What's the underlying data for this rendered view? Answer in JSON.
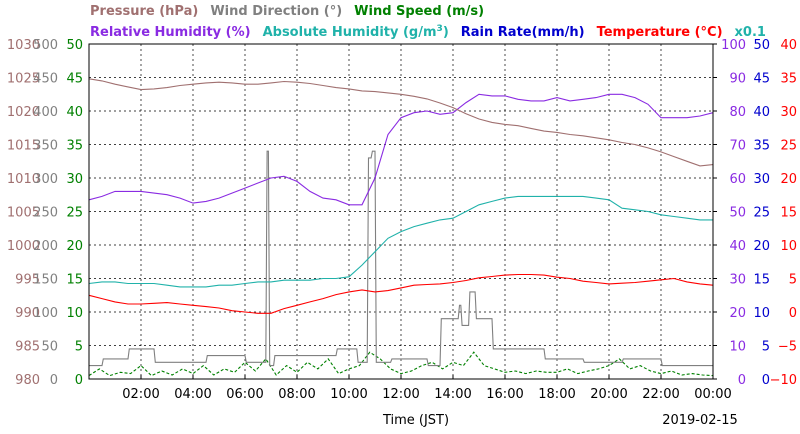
{
  "chart_data": {
    "type": "line",
    "date": "2019-02-15",
    "xlabel": "Time (JST)",
    "x_ticks": [
      "02:00",
      "04:00",
      "06:00",
      "08:00",
      "10:00",
      "12:00",
      "14:00",
      "16:00",
      "18:00",
      "20:00",
      "22:00",
      "00:00"
    ],
    "x_range_hours": [
      0,
      24
    ],
    "grid": true,
    "headers": {
      "line1": [
        {
          "text": "Pressure (hPa)",
          "color": "#a07070"
        },
        {
          "text": "Wind Direction (°)",
          "color": "#808080"
        },
        {
          "text": "Wind Speed (m/s)",
          "color": "#008000"
        }
      ],
      "line2": [
        {
          "text": "Relative Humidity (%)",
          "color": "#8a2be2"
        },
        {
          "text": "Absolute Humidity (g/m",
          "sup": "3",
          "close": ")",
          "color": "#20b2aa"
        },
        {
          "text": "Rain Rate(mm/h)",
          "color": "#0000cd"
        },
        {
          "text": "Temperature (°C)",
          "color": "#ff0000"
        },
        {
          "text": "x0.1",
          "color": "#20b2aa"
        }
      ]
    },
    "axes": {
      "pressure": {
        "color": "#a07070",
        "ticks": [
          "1030",
          "1025",
          "1020",
          "1015",
          "1010",
          "1005",
          "1000",
          "995",
          "990",
          "985",
          "980"
        ],
        "range": [
          980,
          1030
        ]
      },
      "wind_direction": {
        "color": "#808080",
        "ticks": [
          "500",
          "450",
          "400",
          "350",
          "300",
          "250",
          "200",
          "150",
          "100",
          "50",
          "0"
        ],
        "range": [
          0,
          500
        ]
      },
      "wind_speed": {
        "color": "#008000",
        "ticks": [
          "50",
          "45",
          "40",
          "35",
          "30",
          "25",
          "20",
          "15",
          "10",
          "5",
          "0"
        ],
        "range": [
          0,
          50
        ]
      },
      "relative_humidity": {
        "color": "#8a2be2",
        "ticks": [
          "100",
          "90",
          "80",
          "70",
          "60",
          "50",
          "40",
          "30",
          "20",
          "10",
          "0"
        ],
        "range": [
          0,
          100
        ]
      },
      "rain_rate": {
        "color": "#0000cd",
        "ticks": [
          "50",
          "45",
          "40",
          "35",
          "30",
          "25",
          "20",
          "15",
          "10",
          "5",
          "0"
        ],
        "range": [
          0,
          50
        ]
      },
      "temperature": {
        "color": "#ff0000",
        "ticks": [
          "40",
          "35",
          "30",
          "25",
          "20",
          "15",
          "10",
          "5",
          "0",
          "−5",
          "−10"
        ],
        "range": [
          -10,
          40
        ]
      }
    },
    "series": [
      {
        "name": "Pressure",
        "color": "#a07070",
        "axis": "pressure",
        "x": [
          0,
          0.5,
          1,
          1.5,
          2,
          2.5,
          3,
          3.5,
          4,
          4.5,
          5,
          5.5,
          6,
          6.5,
          7,
          7.5,
          8,
          8.5,
          9,
          9.5,
          10,
          10.5,
          11,
          11.5,
          12,
          12.5,
          13,
          13.5,
          14,
          14.5,
          15,
          15.5,
          16,
          16.5,
          17,
          17.5,
          18,
          18.5,
          19,
          19.5,
          20,
          20.5,
          21,
          21.5,
          22,
          22.5,
          23,
          23.5,
          24
        ],
        "y": [
          1024.8,
          1024.5,
          1024.0,
          1023.6,
          1023.2,
          1023.3,
          1023.5,
          1023.8,
          1024.0,
          1024.2,
          1024.3,
          1024.2,
          1024.0,
          1024.0,
          1024.2,
          1024.4,
          1024.3,
          1024.1,
          1023.8,
          1023.5,
          1023.3,
          1023.0,
          1022.9,
          1022.7,
          1022.5,
          1022.2,
          1021.8,
          1021.2,
          1020.5,
          1019.6,
          1018.8,
          1018.3,
          1018.0,
          1017.8,
          1017.4,
          1017.0,
          1016.8,
          1016.5,
          1016.3,
          1016.0,
          1015.7,
          1015.3,
          1015.0,
          1014.5,
          1013.9,
          1013.2,
          1012.5,
          1011.8,
          1012.0
        ]
      },
      {
        "name": "Relative Humidity",
        "color": "#8a2be2",
        "axis": "relative_humidity",
        "x": [
          0,
          0.5,
          1,
          1.5,
          2,
          2.5,
          3,
          3.5,
          4,
          4.5,
          5,
          5.5,
          6,
          6.5,
          7,
          7.5,
          8,
          8.5,
          9,
          9.5,
          10,
          10.5,
          11,
          11.5,
          12,
          12.5,
          13,
          13.5,
          14,
          14.5,
          15,
          15.5,
          16,
          16.5,
          17,
          17.5,
          18,
          18.5,
          19,
          19.5,
          20,
          20.5,
          21,
          21.5,
          22,
          22.5,
          23,
          23.5,
          24
        ],
        "y": [
          53.5,
          54.5,
          56,
          56,
          56,
          55.5,
          55,
          54,
          52.5,
          53,
          54,
          55.5,
          57,
          58.5,
          60,
          60.5,
          59,
          56,
          54,
          53.5,
          52,
          52,
          60,
          73,
          78,
          79.5,
          80,
          79,
          79.5,
          82.5,
          85,
          84.5,
          84.5,
          83.5,
          83,
          83,
          84,
          83,
          83.5,
          84,
          85,
          85,
          84,
          82,
          78,
          78,
          78,
          78.5,
          79.5
        ]
      },
      {
        "name": "Absolute Humidity (x0.1)",
        "color": "#20b2aa",
        "axis": "relative_humidity",
        "x": [
          0,
          0.5,
          1,
          1.5,
          2,
          2.5,
          3,
          3.5,
          4,
          4.5,
          5,
          5.5,
          6,
          6.5,
          7,
          7.5,
          8,
          8.5,
          9,
          9.5,
          10,
          10.5,
          11,
          11.5,
          12,
          12.5,
          13,
          13.5,
          14,
          14.5,
          15,
          15.5,
          16,
          16.5,
          17,
          17.5,
          18,
          18.5,
          19,
          19.5,
          20,
          20.5,
          21,
          21.5,
          22,
          22.5,
          23,
          23.5,
          24
        ],
        "y": [
          28.5,
          29,
          29,
          28.5,
          28.5,
          28.5,
          28,
          27.5,
          27.5,
          27.5,
          28,
          28,
          28.5,
          29,
          29,
          29.5,
          29.5,
          29.5,
          30,
          30,
          30.5,
          34,
          38,
          42,
          44,
          45.5,
          46.5,
          47.5,
          48,
          50,
          52,
          53,
          54,
          54.5,
          54.5,
          54.5,
          54.5,
          54.5,
          54.5,
          54,
          53.5,
          51,
          50.5,
          50,
          49,
          48.5,
          48,
          47.5,
          47.5
        ]
      },
      {
        "name": "Temperature",
        "color": "#ff0000",
        "axis": "temperature",
        "x": [
          0,
          0.5,
          1,
          1.5,
          2,
          2.5,
          3,
          3.5,
          4,
          4.5,
          5,
          5.5,
          6,
          6.5,
          7,
          7.5,
          8,
          8.5,
          9,
          9.5,
          10,
          10.5,
          11,
          11.5,
          12,
          12.5,
          13,
          13.5,
          14,
          14.5,
          15,
          15.5,
          16,
          16.5,
          17,
          17.5,
          18,
          18.5,
          19,
          19.5,
          20,
          20.5,
          21,
          21.5,
          22,
          22.5,
          23,
          23.5,
          24
        ],
        "y": [
          2.5,
          2,
          1.5,
          1.2,
          1.2,
          1.3,
          1.4,
          1.2,
          1,
          0.8,
          0.6,
          0.2,
          0,
          -0.2,
          -0.2,
          0.5,
          1,
          1.5,
          2,
          2.6,
          3,
          3.3,
          3,
          3.2,
          3.6,
          4,
          4.1,
          4.2,
          4.4,
          4.7,
          5.1,
          5.3,
          5.5,
          5.6,
          5.6,
          5.5,
          5.2,
          5,
          4.6,
          4.4,
          4.2,
          4.3,
          4.4,
          4.6,
          4.8,
          5,
          4.5,
          4.2,
          4
        ]
      },
      {
        "name": "Wind Direction",
        "color": "#808080",
        "axis": "wind_direction",
        "x": [
          0,
          0.5,
          0.55,
          1.5,
          1.55,
          2.5,
          2.55,
          4.5,
          4.55,
          6,
          6.05,
          6.8,
          6.85,
          6.9,
          6.95,
          7.1,
          7.15,
          9.5,
          9.55,
          10.3,
          10.35,
          10.7,
          10.75,
          10.85,
          10.9,
          11.0,
          11.05,
          11.6,
          11.65,
          13,
          13.05,
          13.5,
          13.55,
          14.2,
          14.25,
          14.3,
          14.35,
          14.6,
          14.65,
          14.85,
          14.9,
          14.95,
          15.0,
          15.5,
          15.55,
          17.5,
          17.55,
          19,
          19.05,
          20.5,
          20.55,
          22,
          22.05,
          24
        ],
        "y": [
          20,
          20,
          30,
          30,
          45,
          45,
          25,
          25,
          35,
          35,
          25,
          25,
          340,
          340,
          20,
          20,
          35,
          35,
          45,
          45,
          25,
          25,
          330,
          330,
          340,
          340,
          25,
          25,
          30,
          30,
          20,
          20,
          90,
          90,
          110,
          110,
          80,
          80,
          130,
          130,
          90,
          90,
          90,
          90,
          45,
          45,
          30,
          30,
          25,
          25,
          30,
          30,
          20,
          20
        ]
      },
      {
        "name": "Wind Speed",
        "color": "#008000",
        "axis": "wind_speed",
        "x": [
          0,
          0.4,
          0.8,
          1.2,
          1.6,
          2,
          2.4,
          2.8,
          3.2,
          3.6,
          4,
          4.4,
          4.8,
          5.2,
          5.6,
          6,
          6.4,
          6.8,
          7.2,
          7.6,
          8,
          8.4,
          8.8,
          9.2,
          9.6,
          10,
          10.4,
          10.8,
          11.2,
          11.6,
          12,
          12.4,
          12.8,
          13.2,
          13.6,
          14,
          14.4,
          14.8,
          15.2,
          15.6,
          16,
          16.4,
          16.8,
          17.2,
          17.6,
          18,
          18.4,
          18.8,
          19.2,
          19.6,
          20,
          20.4,
          20.8,
          21.2,
          21.6,
          22,
          22.4,
          22.8,
          23.2,
          23.6,
          24
        ],
        "y": [
          0.5,
          1.5,
          0.5,
          1,
          0.8,
          2,
          0.5,
          1.2,
          0.6,
          1.5,
          0.8,
          2,
          0.6,
          1.5,
          1,
          2.5,
          1.2,
          3,
          0.6,
          2,
          1,
          2.5,
          1.5,
          3,
          0.8,
          1.5,
          2,
          4,
          3,
          1.5,
          0.8,
          1.2,
          2,
          2.5,
          1.5,
          2.5,
          2,
          4,
          2,
          1.5,
          1,
          1.2,
          0.8,
          1.2,
          1,
          1,
          1.5,
          0.8,
          1.2,
          1.5,
          2,
          3,
          1.5,
          2,
          1.2,
          0.8,
          1.2,
          0.6,
          0.8,
          0.6,
          0.5
        ]
      }
    ]
  }
}
